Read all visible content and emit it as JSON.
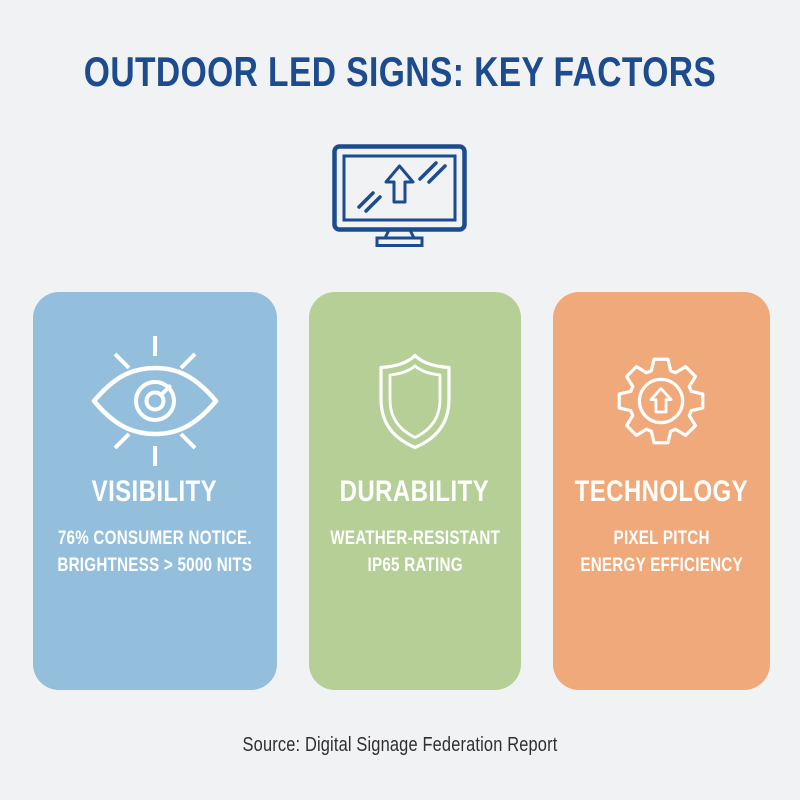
{
  "title": "OUTDOOR LED SIGNS: KEY FACTORS",
  "hero": {
    "icon": "led-monitor-icon"
  },
  "cards": [
    {
      "title": "VISIBILITY",
      "icon": "eye-visibility-icon",
      "color": "#94bfdc",
      "lines": [
        "76% CONSUMER NOTICE.",
        "BRIGHTNESS > 5000 NITS"
      ]
    },
    {
      "title": "DURABILITY",
      "icon": "shield-icon",
      "color": "#b5cf97",
      "lines": [
        "WEATHER-RESISTANT",
        "IP65 RATING"
      ]
    },
    {
      "title": "TECHNOLOGY",
      "icon": "gear-upgrade-icon",
      "color": "#efa97a",
      "lines": [
        "PIXEL PITCH",
        "ENERGY EFFICIENCY"
      ]
    }
  ],
  "source": "Source: Digital Signage Federation Report",
  "colors": {
    "background": "#f1f2f4",
    "title_text": "#1c4b8e",
    "card_text": "#ffffff",
    "source_text": "#2f2f2f"
  }
}
